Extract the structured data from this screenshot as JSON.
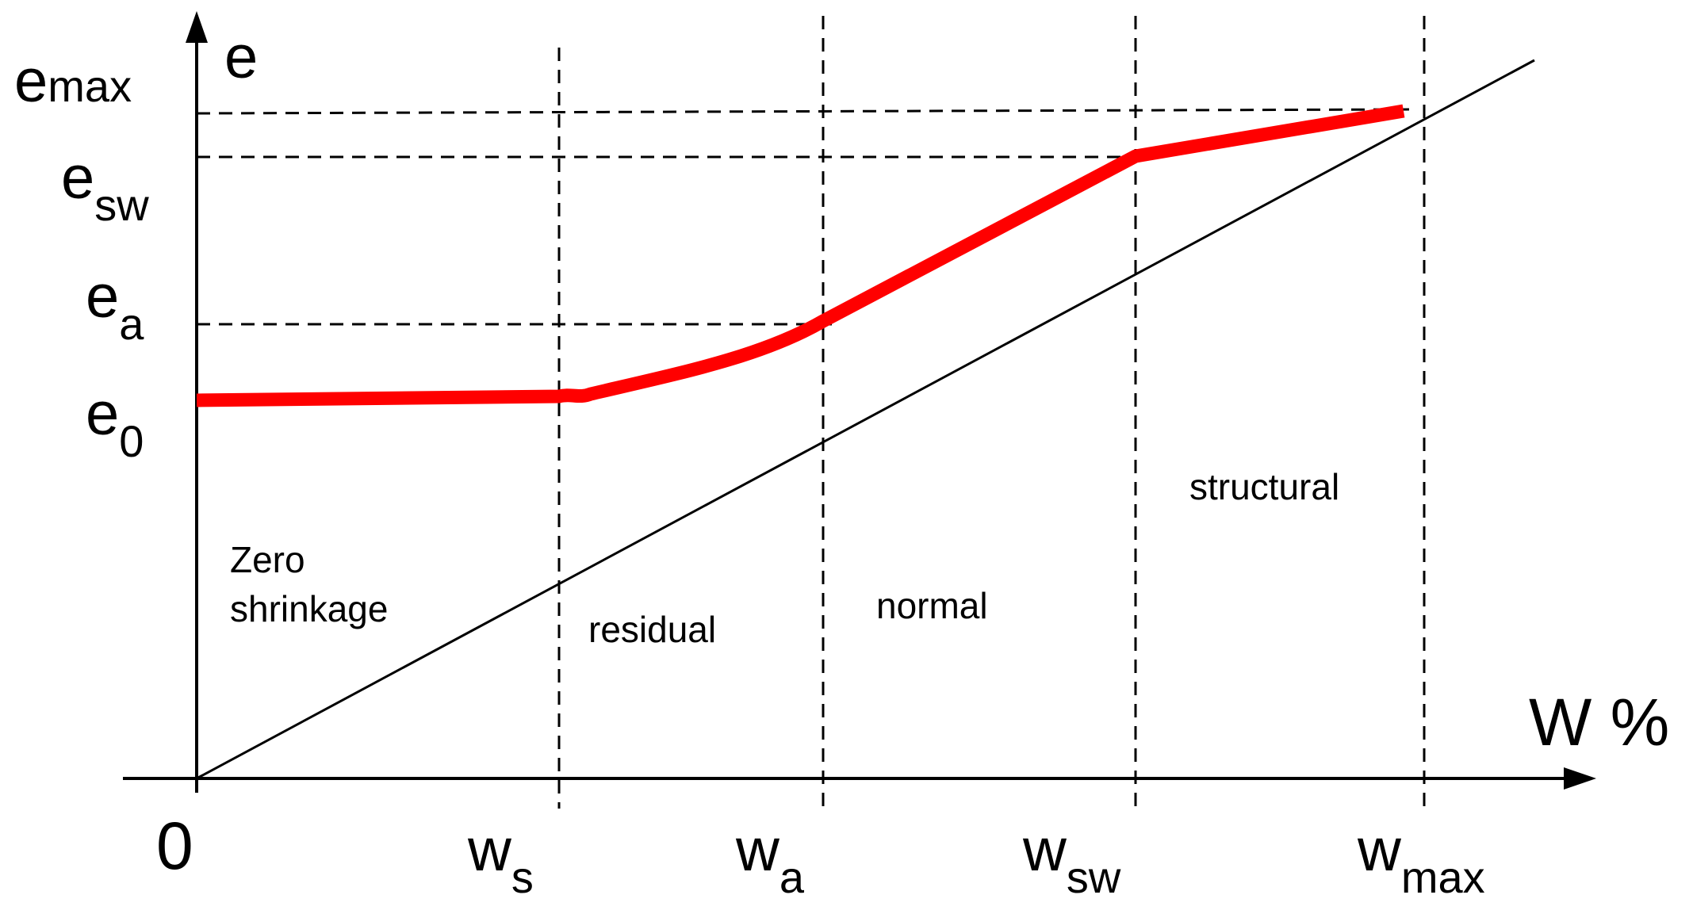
{
  "axes": {
    "y_label": "e",
    "x_label": "W %",
    "origin_label": "0"
  },
  "y_markers": [
    {
      "id": "emax",
      "base": "e",
      "sub": "max"
    },
    {
      "id": "esw",
      "base": "e",
      "sub": "sw"
    },
    {
      "id": "ea",
      "base": "e",
      "sub": "a"
    },
    {
      "id": "e0",
      "base": "e",
      "sub": "0"
    }
  ],
  "x_markers": [
    {
      "id": "ws",
      "base": "w",
      "sub": "s"
    },
    {
      "id": "wa",
      "base": "w",
      "sub": "a"
    },
    {
      "id": "wsw",
      "base": "w",
      "sub": "sw"
    },
    {
      "id": "wmax",
      "base": "w",
      "sub": "max"
    }
  ],
  "regions": {
    "zero_line1": "Zero",
    "zero_line2": "shrinkage",
    "residual": "residual",
    "normal": "normal",
    "structural": "structural"
  },
  "colors": {
    "curve": "#ff0000",
    "lines": "#000000"
  }
}
